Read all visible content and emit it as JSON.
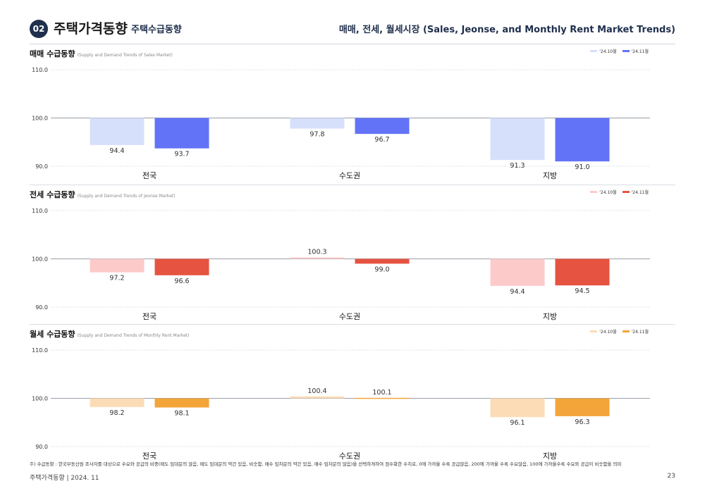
{
  "header": {
    "badge": "02",
    "title": "주택가격동향",
    "subtitle": "주택수급동향",
    "right_title": "매매, 전세, 월세시장 (Sales, Jeonse, and Monthly Rent Market Trends)"
  },
  "chart_data": [
    {
      "type": "bar",
      "title": "매매 수급동향",
      "subtitle": "(Supply and Demand Trends of Sales Market)",
      "categories": [
        "전국",
        "수도권",
        "지방"
      ],
      "series": [
        {
          "name": "'24.10월",
          "color": "#d6e0fa",
          "values": [
            94.4,
            97.8,
            91.3
          ]
        },
        {
          "name": "'24.11월",
          "color": "#6373f7",
          "values": [
            93.7,
            96.7,
            91.0
          ]
        }
      ],
      "baseline": 100.0,
      "ylim": [
        90.0,
        110.0
      ],
      "yticks": [
        "110.0",
        "100.0",
        "90.0"
      ],
      "value_labels": [
        [
          "94.4",
          "97.8",
          "91.3"
        ],
        [
          "93.7",
          "96.7",
          "91.0"
        ]
      ],
      "grid": true,
      "legend": "top-right"
    },
    {
      "type": "bar",
      "title": "전세 수급동향",
      "subtitle": "(Supply and Demand Trends of Jeonse Market)",
      "categories": [
        "전국",
        "수도권",
        "지방"
      ],
      "series": [
        {
          "name": "'24.10월",
          "color": "#fdcaca",
          "values": [
            97.2,
            100.3,
            94.4
          ]
        },
        {
          "name": "'24.11월",
          "color": "#e65341",
          "values": [
            96.6,
            99.0,
            94.5
          ]
        }
      ],
      "baseline": 100.0,
      "ylim": [
        90.0,
        110.0
      ],
      "yticks": [
        "110.0",
        "100.0",
        "90.0"
      ],
      "value_labels": [
        [
          "97.2",
          "100.3",
          "94.4"
        ],
        [
          "96.6",
          "99.0",
          "94.5"
        ]
      ],
      "grid": true,
      "legend": "top-right"
    },
    {
      "type": "bar",
      "title": "월세 수급동향",
      "subtitle": "(Supply and Demand Trends of Monthly Rent Market)",
      "categories": [
        "전국",
        "수도권",
        "지방"
      ],
      "series": [
        {
          "name": "'24.10월",
          "color": "#fcdcb6",
          "values": [
            98.2,
            100.4,
            96.1
          ]
        },
        {
          "name": "'24.11월",
          "color": "#f3a53a",
          "values": [
            98.1,
            100.1,
            96.3
          ]
        }
      ],
      "baseline": 100.0,
      "ylim": [
        90.0,
        110.0
      ],
      "yticks": [
        "110.0",
        "100.0",
        "90.0"
      ],
      "value_labels": [
        [
          "98.2",
          "100.4",
          "96.1"
        ],
        [
          "98.1",
          "100.1",
          "96.3"
        ]
      ],
      "grid": true,
      "legend": "top-right"
    }
  ],
  "footnote": "주) 수급동향 : 한국부동산원 조사자를 대상으로 수요와 공급의 비중(매도 임대문의 많음, 매도 임대문의 약간 있음, 비슷함, 매수 임차문의 약간 있음, 매수 임차문의 많음)을 선택하게하여 점수화한 수치로, 0에 가까울 수록 공급많음, 200에 가까울 수록 수요많음, 100에 가까울수록 수요와 공급이 비슷함을 의미",
  "footer": {
    "left": "주택가격동향   |   2024. 11",
    "page": "23"
  }
}
